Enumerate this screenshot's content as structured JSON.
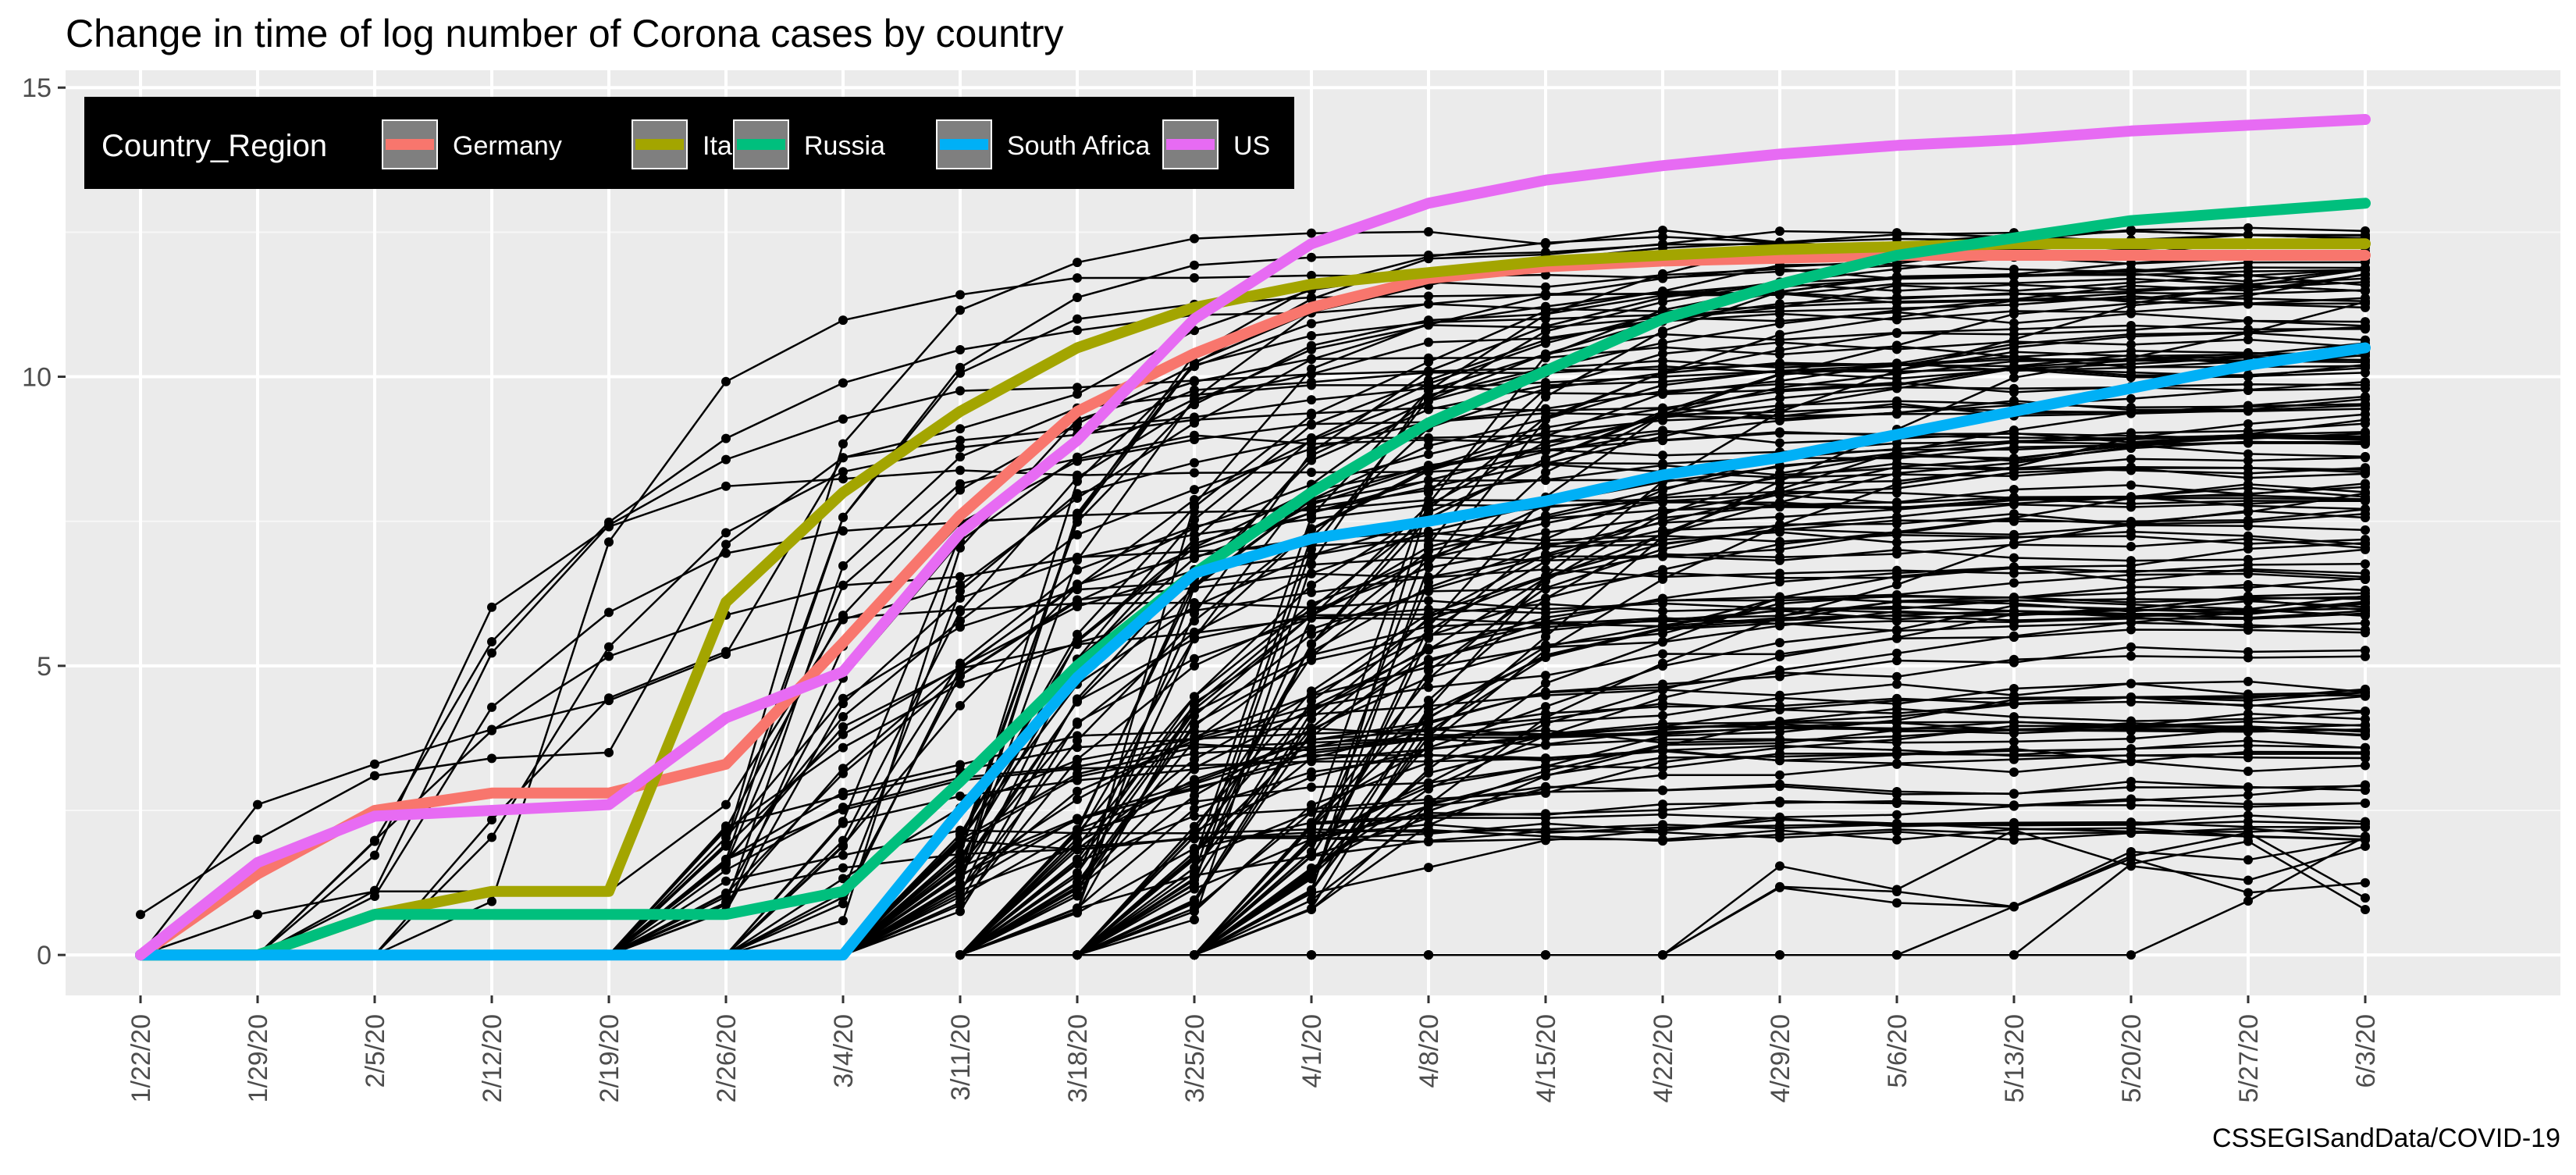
{
  "chart_data": {
    "type": "line",
    "title": "Change in time of log number of Corona cases by country",
    "caption": "CSSEGISandData/COVID-19",
    "xlabel": "",
    "ylabel": "",
    "categories": [
      "1/22/20",
      "1/29/20",
      "2/5/20",
      "2/12/20",
      "2/19/20",
      "2/26/20",
      "3/4/20",
      "3/11/20",
      "3/18/20",
      "3/25/20",
      "4/1/20",
      "4/8/20",
      "4/15/20",
      "4/22/20",
      "4/29/20",
      "5/6/20",
      "5/13/20",
      "5/20/20",
      "5/27/20",
      "6/3/20"
    ],
    "ylim": [
      -0.7,
      15.3
    ],
    "yticks": [
      0,
      5,
      10,
      15
    ],
    "grid": true,
    "legend": {
      "title": "Country_Region",
      "placement": "top-left",
      "background": "#000000"
    },
    "series": [
      {
        "name": "Germany",
        "color": "#F8766D",
        "values": [
          0,
          1.4,
          2.5,
          2.8,
          2.8,
          3.3,
          5.4,
          7.6,
          9.4,
          10.4,
          11.2,
          11.7,
          11.9,
          12.0,
          12.05,
          12.1,
          12.1,
          12.1,
          12.1,
          12.1
        ]
      },
      {
        "name": "Italy",
        "color": "#A3A500",
        "values": [
          0,
          0,
          0.7,
          1.1,
          1.1,
          6.1,
          8.0,
          9.4,
          10.5,
          11.2,
          11.6,
          11.8,
          12.0,
          12.1,
          12.2,
          12.25,
          12.3,
          12.3,
          12.3,
          12.3
        ]
      },
      {
        "name": "Russia",
        "color": "#00BF7D",
        "values": [
          0,
          0,
          0.7,
          0.7,
          0.7,
          0.7,
          1.1,
          3.0,
          5.0,
          6.6,
          8.0,
          9.2,
          10.1,
          11.0,
          11.6,
          12.1,
          12.4,
          12.7,
          12.85,
          13.0
        ]
      },
      {
        "name": "South Africa",
        "color": "#00B0F6",
        "values": [
          0,
          0,
          0,
          0,
          0,
          0,
          0,
          2.5,
          4.8,
          6.6,
          7.2,
          7.5,
          7.85,
          8.3,
          8.6,
          9.0,
          9.4,
          9.8,
          10.2,
          10.5
        ]
      },
      {
        "name": "US",
        "color": "#E76BF3",
        "values": [
          0,
          1.6,
          2.4,
          2.5,
          2.6,
          4.1,
          4.9,
          7.3,
          8.9,
          11.0,
          12.3,
          13.0,
          13.4,
          13.65,
          13.85,
          14.0,
          14.1,
          14.25,
          14.35,
          14.45
        ]
      }
    ],
    "background_series": {
      "color": "#000000",
      "description_count": 150,
      "sample": [
        [
          0,
          2.6,
          3.3,
          3.9,
          4.4,
          5.2,
          8.6,
          8.9,
          9.1,
          9.3,
          9.6,
          9.8,
          9.9,
          10.0,
          10.1,
          10.2,
          10.3,
          10.3,
          10.4,
          10.4
        ],
        [
          0.7,
          2.0,
          3.1,
          3.4,
          3.5,
          7.1,
          8.6,
          9.1,
          9.7,
          10.8,
          11.5,
          11.8,
          12.0,
          12.1,
          12.1,
          12.2,
          12.2,
          12.3,
          12.3,
          12.4
        ],
        [
          0,
          0.7,
          1.1,
          1.1,
          1.1,
          2.6,
          5.8,
          6.4,
          7.9,
          9.2,
          10.3,
          10.9,
          11.4,
          11.7,
          11.9,
          12.0,
          12.1,
          12.2,
          12.3,
          12.4
        ]
      ]
    }
  }
}
